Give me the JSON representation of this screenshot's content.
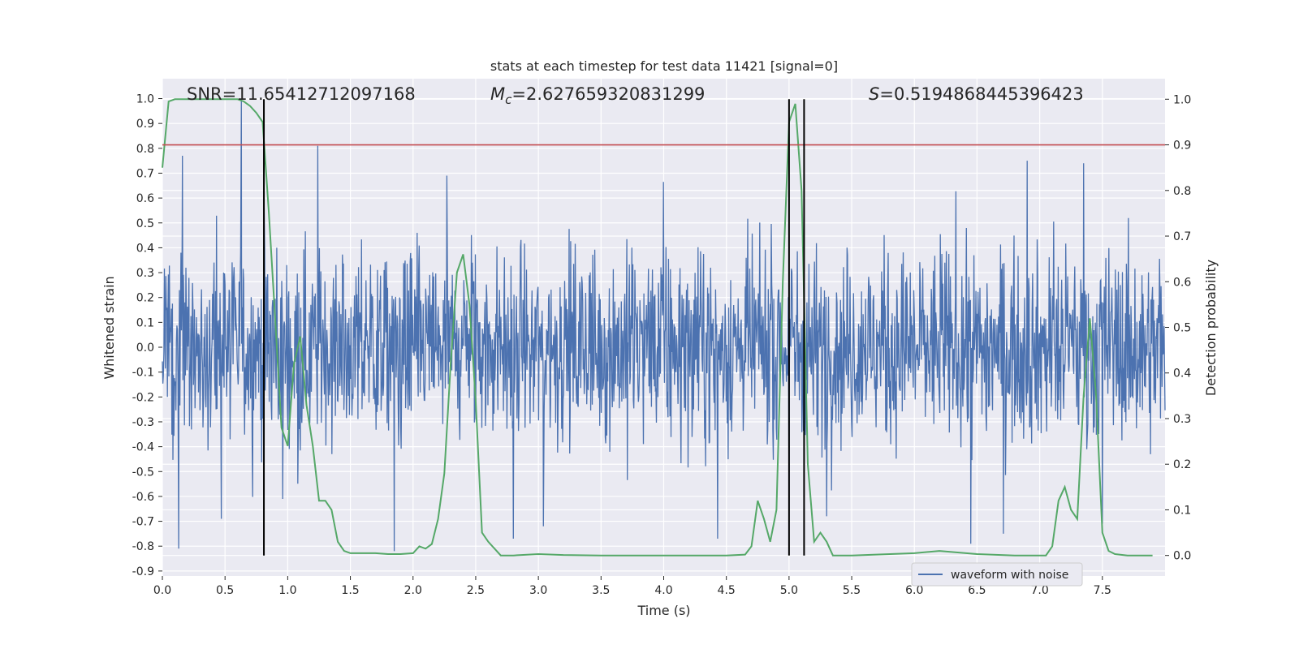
{
  "chart_data": {
    "type": "line",
    "title": "stats at each timestep for test data 11421 [signal=0]",
    "xlabel": "Time (s)",
    "ylabel_left": "Whitened strain",
    "ylabel_right": "Detection probability",
    "xlim": [
      0.0,
      8.0
    ],
    "ylim_left": [
      -0.92,
      1.08
    ],
    "ylim_right": [
      -0.045,
      1.045
    ],
    "x_ticks": [
      "0.0",
      "0.5",
      "1.0",
      "1.5",
      "2.0",
      "2.5",
      "3.0",
      "3.5",
      "4.0",
      "4.5",
      "5.0",
      "5.5",
      "6.0",
      "6.5",
      "7.0",
      "7.5"
    ],
    "y_ticks_left": [
      "1.0",
      "0.9",
      "0.8",
      "0.7",
      "0.6",
      "0.5",
      "0.4",
      "0.3",
      "0.2",
      "0.1",
      "0.0",
      "-0.1",
      "-0.2",
      "-0.3",
      "-0.4",
      "-0.5",
      "-0.6",
      "-0.7",
      "-0.8",
      "-0.9"
    ],
    "y_ticks_right": [
      "1.0",
      "0.9",
      "0.8",
      "0.7",
      "0.6",
      "0.5",
      "0.4",
      "0.3",
      "0.2",
      "0.1",
      "0.0"
    ],
    "grid": true,
    "legend": {
      "entries": [
        "waveform with noise"
      ],
      "placement": "lower-right"
    },
    "annotations": {
      "snr": "SNR=11.65412712097168",
      "mc_symbol": "M",
      "mc_subscript": "c",
      "mc_value": "=2.627659320831299",
      "s_symbol": "S",
      "s_value": "=0.5194868445396423"
    },
    "threshold_line": {
      "value_right": 0.9,
      "color": "#c44e52"
    },
    "vertical_lines_x": [
      0.81,
      5.0,
      5.12
    ],
    "series": [
      {
        "name": "waveform with noise",
        "axis": "left",
        "color": "#4c72b0",
        "t_end": 8.0,
        "base_amplitude": 0.45,
        "spikes": [
          {
            "x": 0.13,
            "y": -0.81
          },
          {
            "x": 0.16,
            "y": 0.77
          },
          {
            "x": 0.63,
            "y": 1.0
          },
          {
            "x": 1.24,
            "y": 0.81
          },
          {
            "x": 0.47,
            "y": -0.69
          },
          {
            "x": 0.96,
            "y": -0.61
          },
          {
            "x": 1.85,
            "y": -0.82
          },
          {
            "x": 2.8,
            "y": -0.77
          },
          {
            "x": 3.04,
            "y": -0.72
          },
          {
            "x": 4.43,
            "y": -0.77
          },
          {
            "x": 5.0,
            "y": -0.68
          },
          {
            "x": 6.45,
            "y": -0.79
          },
          {
            "x": 6.71,
            "y": -0.75
          },
          {
            "x": 7.5,
            "y": -0.71
          },
          {
            "x": 6.9,
            "y": 0.75
          },
          {
            "x": 7.35,
            "y": 0.74
          },
          {
            "x": 5.3,
            "y": -0.68
          },
          {
            "x": 2.27,
            "y": 0.69
          }
        ],
        "color_hex": "#4c72b0"
      },
      {
        "axis": "right",
        "color": "#55a868",
        "x": [
          0.0,
          0.05,
          0.1,
          0.15,
          0.2,
          0.3,
          0.4,
          0.5,
          0.6,
          0.65,
          0.7,
          0.75,
          0.8,
          0.85,
          0.9,
          0.95,
          1.0,
          1.05,
          1.1,
          1.15,
          1.2,
          1.25,
          1.3,
          1.35,
          1.4,
          1.45,
          1.5,
          1.6,
          1.7,
          1.8,
          1.9,
          2.0,
          2.05,
          2.1,
          2.15,
          2.2,
          2.25,
          2.3,
          2.35,
          2.4,
          2.45,
          2.5,
          2.55,
          2.6,
          2.7,
          2.8,
          3.0,
          3.2,
          3.5,
          4.0,
          4.5,
          4.65,
          4.7,
          4.75,
          4.8,
          4.85,
          4.9,
          4.95,
          5.0,
          5.05,
          5.1,
          5.15,
          5.2,
          5.25,
          5.3,
          5.35,
          5.4,
          5.5,
          6.0,
          6.2,
          6.5,
          6.8,
          7.05,
          7.1,
          7.15,
          7.2,
          7.25,
          7.3,
          7.35,
          7.4,
          7.45,
          7.5,
          7.55,
          7.6,
          7.7,
          7.8,
          7.9
        ],
        "values": [
          0.85,
          0.995,
          1.0,
          1.0,
          1.0,
          1.0,
          1.0,
          1.0,
          1.0,
          0.995,
          0.985,
          0.97,
          0.95,
          0.75,
          0.52,
          0.28,
          0.24,
          0.42,
          0.48,
          0.33,
          0.24,
          0.12,
          0.12,
          0.1,
          0.03,
          0.01,
          0.005,
          0.005,
          0.005,
          0.003,
          0.003,
          0.005,
          0.02,
          0.015,
          0.025,
          0.08,
          0.18,
          0.42,
          0.62,
          0.66,
          0.55,
          0.34,
          0.05,
          0.03,
          0.0,
          0.0,
          0.003,
          0.001,
          0.0,
          0.0,
          0.0,
          0.002,
          0.02,
          0.12,
          0.08,
          0.03,
          0.1,
          0.6,
          0.95,
          0.99,
          0.8,
          0.2,
          0.03,
          0.05,
          0.03,
          0.0,
          0.0,
          0.0,
          0.005,
          0.01,
          0.003,
          0.0,
          0.0,
          0.02,
          0.12,
          0.15,
          0.1,
          0.08,
          0.35,
          0.52,
          0.35,
          0.05,
          0.01,
          0.003,
          0.0,
          0.0,
          0.0
        ]
      }
    ]
  }
}
